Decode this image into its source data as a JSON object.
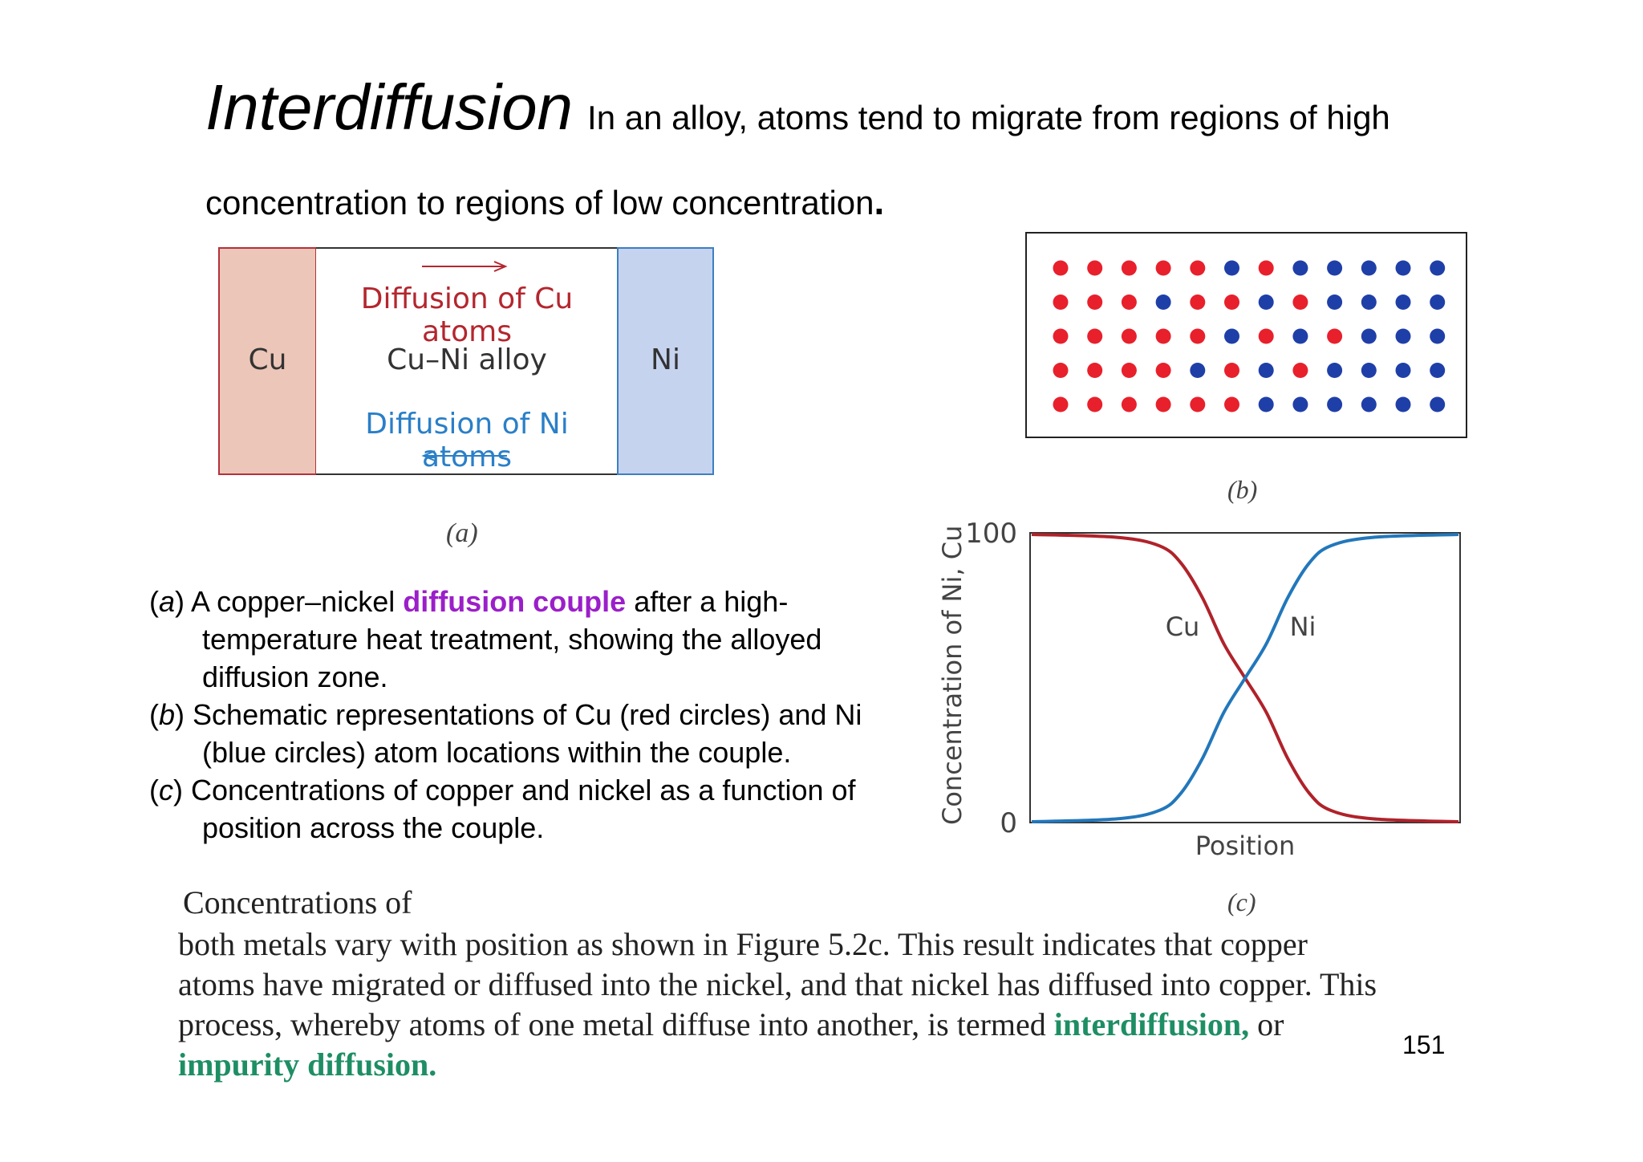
{
  "title": {
    "main": "Interdiffusion",
    "rest": "In an alloy, atoms tend to migrate from regions of high",
    "line2": "concentration to regions of low concentration",
    "line2_end": "."
  },
  "figure_a": {
    "cu_label": "Cu",
    "ni_label": "Ni",
    "cu_diffusion": "Diffusion of Cu atoms",
    "alloy_label": "Cu–Ni alloy",
    "ni_diffusion": "Diffusion of Ni atoms",
    "caption": "(a)",
    "colors": {
      "cu_fill": "#ecc6b8",
      "cu_border": "#b4313a",
      "ni_fill": "#c6d3ef",
      "ni_border": "#3c7fc2"
    }
  },
  "figure_b": {
    "caption": "(b)",
    "colors": {
      "cu": "#e8202c",
      "ni": "#1f3fa8"
    },
    "rows": [
      [
        "Cu",
        "Cu",
        "Cu",
        "Cu",
        "Cu",
        "Ni",
        "Cu",
        "Ni",
        "Ni",
        "Ni",
        "Ni",
        "Ni"
      ],
      [
        "Cu",
        "Cu",
        "Cu",
        "Ni",
        "Cu",
        "Cu",
        "Ni",
        "Cu",
        "Ni",
        "Ni",
        "Ni",
        "Ni"
      ],
      [
        "Cu",
        "Cu",
        "Cu",
        "Cu",
        "Cu",
        "Ni",
        "Cu",
        "Ni",
        "Cu",
        "Ni",
        "Ni",
        "Ni"
      ],
      [
        "Cu",
        "Cu",
        "Cu",
        "Cu",
        "Ni",
        "Cu",
        "Ni",
        "Cu",
        "Ni",
        "Ni",
        "Ni",
        "Ni"
      ],
      [
        "Cu",
        "Cu",
        "Cu",
        "Cu",
        "Cu",
        "Cu",
        "Ni",
        "Ni",
        "Ni",
        "Ni",
        "Ni",
        "Ni"
      ]
    ]
  },
  "chart_data": {
    "type": "line",
    "ylabel": "Concentration of Ni, Cu",
    "xlabel": "Position",
    "yticks": [
      "100",
      "0"
    ],
    "ylim": [
      0,
      100
    ],
    "xlim": [
      0,
      100
    ],
    "grid": false,
    "caption": "(c)",
    "series": [
      {
        "name": "Cu",
        "color": "#b0222a",
        "x": [
          0,
          20,
          30,
          35,
          40,
          45,
          50,
          55,
          60,
          65,
          70,
          80,
          100
        ],
        "y": [
          100,
          99,
          96,
          90,
          78,
          62,
          50,
          38,
          22,
          10,
          4,
          1,
          0
        ]
      },
      {
        "name": "Ni",
        "color": "#2277bb",
        "x": [
          0,
          20,
          30,
          35,
          40,
          45,
          50,
          55,
          60,
          65,
          70,
          80,
          100
        ],
        "y": [
          0,
          1,
          4,
          10,
          22,
          38,
          50,
          62,
          78,
          90,
          96,
          99,
          100
        ]
      }
    ]
  },
  "caption_list": [
    {
      "letter": "a",
      "pre": "A copper–nickel ",
      "highlight": "diffusion couple",
      "post": " after a high-temperature heat treatment, showing the alloyed diffusion zone."
    },
    {
      "letter": "b",
      "pre": "Schematic representations of Cu (red circles) and Ni (blue circles) atom locations within the couple.",
      "highlight": "",
      "post": ""
    },
    {
      "letter": "c",
      "pre": "Concentrations of copper and nickel as a function of position across the couple.",
      "highlight": "",
      "post": ""
    }
  ],
  "paragraph": {
    "heading": "Concentrations of",
    "body": "both metals vary with position as shown in Figure 5.2c. This result indicates that copper atoms have migrated or diffused into the nickel, and that nickel has diffused into copper. This process, whereby atoms of one metal diffuse into another, is termed ",
    "term1": "interdiffusion,",
    "mid": " or ",
    "term2": "impurity diffusion."
  },
  "page_number": "151"
}
